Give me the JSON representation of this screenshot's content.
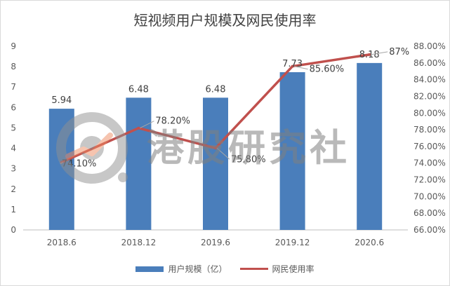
{
  "chart_data": {
    "type": "bar",
    "title": "短视频用户规模及网民使用率",
    "categories": [
      "2018.6",
      "2018.12",
      "2019.6",
      "2019.12",
      "2020.6"
    ],
    "series": [
      {
        "name": "用户规模（亿）",
        "type": "bar",
        "axis": "left",
        "color": "#4a7ebb",
        "values": [
          5.94,
          6.48,
          6.48,
          7.73,
          8.18
        ],
        "labels": [
          "5.94",
          "6.48",
          "6.48",
          "7.73",
          "8.18"
        ]
      },
      {
        "name": "网民使用率",
        "type": "line",
        "axis": "right",
        "color": "#c0504d",
        "values": [
          74.1,
          78.2,
          75.8,
          85.6,
          87.0
        ],
        "labels": [
          "74.10%",
          "78.20%",
          "75.80%",
          "85.60%",
          "87%"
        ]
      }
    ],
    "y_left": {
      "min": 0,
      "max": 9,
      "ticks": [
        "0",
        "1",
        "2",
        "3",
        "4",
        "5",
        "6",
        "7",
        "8",
        "9"
      ]
    },
    "y_right": {
      "min": 66,
      "max": 88,
      "ticks": [
        "66.00%",
        "68.00%",
        "70.00%",
        "72.00%",
        "74.00%",
        "76.00%",
        "78.00%",
        "80.00%",
        "82.00%",
        "84.00%",
        "86.00%",
        "88.00%"
      ]
    },
    "grid": false,
    "legend_position": "bottom"
  },
  "watermark": {
    "text": "港股研究社"
  }
}
